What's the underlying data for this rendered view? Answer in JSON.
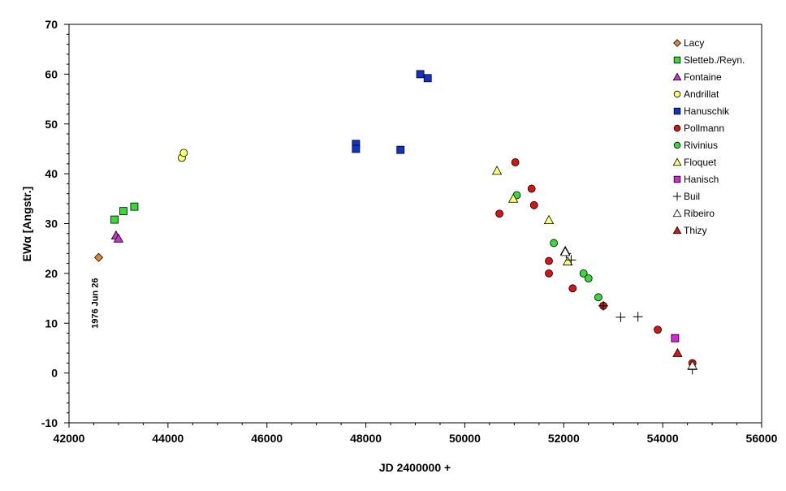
{
  "chart_data": {
    "type": "scatter",
    "xlabel": "JD 2400000 +",
    "ylabel_text": "EW",
    "ylabel_symbol": "α",
    "ylabel_unit": " [Angstr.]",
    "xlim": [
      42000,
      56000
    ],
    "ylim": [
      -10,
      70
    ],
    "x_ticks": [
      42000,
      44000,
      46000,
      48000,
      50000,
      52000,
      54000,
      56000
    ],
    "y_ticks": [
      -10,
      0,
      10,
      20,
      30,
      40,
      50,
      60,
      70
    ],
    "x_tick_labels": [
      "42000",
      "44000",
      "46000",
      "48000",
      "50000",
      "52000",
      "54000",
      "56000"
    ],
    "y_tick_labels": [
      "-10",
      "0",
      "10",
      "20",
      "30",
      "40",
      "50",
      "60",
      "70"
    ],
    "grid": false,
    "legend_position": "top-right",
    "annotations": [
      {
        "text": "1976 Jun 26",
        "x": 42600,
        "y": 14
      }
    ],
    "series": [
      {
        "name": "Lacy",
        "marker": "diamond",
        "color": "#e8862e",
        "points": [
          [
            42600,
            23.2
          ]
        ]
      },
      {
        "name": "Sletteb./Reyn.",
        "marker": "square",
        "color": "#33dd33",
        "points": [
          [
            42920,
            30.8
          ],
          [
            43100,
            32.5
          ],
          [
            43320,
            33.4
          ]
        ]
      },
      {
        "name": "Fontaine",
        "marker": "triangle",
        "color": "#cc33cc",
        "points": [
          [
            42950,
            27.6
          ],
          [
            43000,
            27.0
          ]
        ]
      },
      {
        "name": "Andrillat",
        "marker": "circle",
        "color": "#ffff66",
        "points": [
          [
            44280,
            43.2
          ],
          [
            44320,
            44.2
          ]
        ]
      },
      {
        "name": "Hanuschik",
        "marker": "square",
        "color": "#1133cc",
        "points": [
          [
            47800,
            46.0
          ],
          [
            47800,
            45.0
          ],
          [
            48700,
            44.8
          ],
          [
            49100,
            60.0
          ],
          [
            49250,
            59.2
          ]
        ]
      },
      {
        "name": "Pollmann",
        "marker": "circle",
        "color": "#dd1111",
        "points": [
          [
            50700,
            32.0
          ],
          [
            51020,
            42.3
          ],
          [
            51350,
            37.0
          ],
          [
            51400,
            33.7
          ],
          [
            51700,
            22.5
          ],
          [
            51700,
            20.0
          ],
          [
            52180,
            17.0
          ],
          [
            52800,
            13.5
          ],
          [
            53900,
            8.7
          ],
          [
            54600,
            2.0
          ]
        ]
      },
      {
        "name": "Rivinius",
        "marker": "circle",
        "color": "#33dd33",
        "points": [
          [
            51050,
            35.7
          ],
          [
            51800,
            26.1
          ],
          [
            52400,
            20.0
          ],
          [
            52500,
            19.0
          ],
          [
            52700,
            15.2
          ]
        ]
      },
      {
        "name": "Floquet",
        "marker": "triangle",
        "color": "#ffff66",
        "points": [
          [
            50650,
            40.6
          ],
          [
            50980,
            35.0
          ],
          [
            51700,
            30.7
          ],
          [
            52030,
            24.5
          ],
          [
            52080,
            22.4
          ]
        ]
      },
      {
        "name": "Hanisch",
        "marker": "square",
        "color": "#dd22dd",
        "points": [
          [
            54250,
            7.0
          ]
        ]
      },
      {
        "name": "Buil",
        "marker": "plus",
        "color": "#000000",
        "points": [
          [
            52050,
            24.0
          ],
          [
            52150,
            22.7
          ],
          [
            52800,
            13.5
          ],
          [
            53150,
            11.2
          ],
          [
            53500,
            11.3
          ],
          [
            54600,
            0.7
          ]
        ]
      },
      {
        "name": "Ribeiro",
        "marker": "triangle",
        "color": "#ffffff",
        "points": [
          [
            52030,
            24.3
          ],
          [
            54600,
            1.5
          ]
        ]
      },
      {
        "name": "Thizy",
        "marker": "triangle",
        "color": "#dd1111",
        "points": [
          [
            54300,
            4.0
          ]
        ]
      }
    ]
  }
}
